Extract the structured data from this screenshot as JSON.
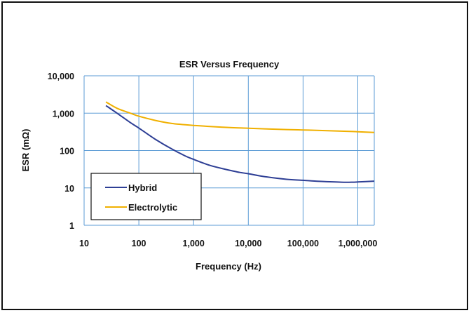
{
  "chart_data": {
    "type": "line",
    "title": "ESR Versus Frequency",
    "xlabel": "Frequency (Hz)",
    "ylabel": "ESR (mΩ)",
    "x_scale": "log",
    "y_scale": "log",
    "xlim": [
      10,
      2000000
    ],
    "ylim": [
      1,
      10000
    ],
    "x_ticks": [
      10,
      100,
      1000,
      10000,
      100000,
      1000000
    ],
    "x_tick_labels": [
      "10",
      "100",
      "1,000",
      "10,000",
      "100,000",
      "1,000,000"
    ],
    "y_ticks": [
      1,
      10,
      100,
      1000,
      10000
    ],
    "y_tick_labels": [
      "1",
      "10",
      "100",
      "1,000",
      "10,000"
    ],
    "grid": true,
    "legend_position": "bottom-left",
    "colors": {
      "Hybrid": "#2e3f95",
      "Electrolytic": "#f0b000",
      "grid": "#5b9bd5"
    },
    "series": [
      {
        "name": "Hybrid",
        "x": [
          25,
          40,
          70,
          100,
          200,
          400,
          700,
          1000,
          2000,
          4000,
          7000,
          10000,
          20000,
          50000,
          100000,
          200000,
          500000,
          800000,
          1000000,
          2000000
        ],
        "y": [
          1600,
          1000,
          560,
          400,
          200,
          110,
          72,
          58,
          40,
          31,
          26,
          24,
          20,
          17,
          16,
          15,
          14.2,
          14.2,
          14.4,
          15.2
        ]
      },
      {
        "name": "Electrolytic",
        "x": [
          25,
          40,
          70,
          100,
          200,
          400,
          700,
          1000,
          2000,
          5000,
          10000,
          20000,
          50000,
          100000,
          200000,
          500000,
          1000000,
          2000000
        ],
        "y": [
          2000,
          1350,
          1000,
          830,
          640,
          530,
          490,
          470,
          440,
          410,
          395,
          380,
          365,
          355,
          345,
          330,
          318,
          305
        ]
      }
    ]
  }
}
